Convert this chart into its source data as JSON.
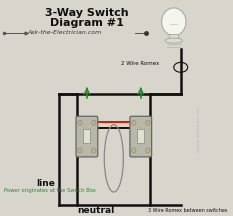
{
  "title_line1": "3-Way Switch",
  "title_line2": "Diagram #1",
  "website_text": "Ask-the-Electrician.com",
  "label_line": "line",
  "label_neutral": "neutral",
  "label_power": "Power originates at the Switch Box",
  "label_2wire": "2 Wire Romex",
  "label_3wire": "3 Wire Romex between switches",
  "bg_color": "#d8d5cc",
  "title_color": "#111111",
  "website_color": "#333333",
  "green_color": "#2a8a2a",
  "red_color": "#cc2200",
  "black_color": "#111111",
  "gray_color": "#999999",
  "switch_fill": "#b8b8a8",
  "power_label_color": "#2a8a2a",
  "copyright_color": "#aaaaaa",
  "outer_rect_color": "#111111",
  "bulb_color": "#f5f5f0",
  "bulb_base_color": "#ddddcc"
}
